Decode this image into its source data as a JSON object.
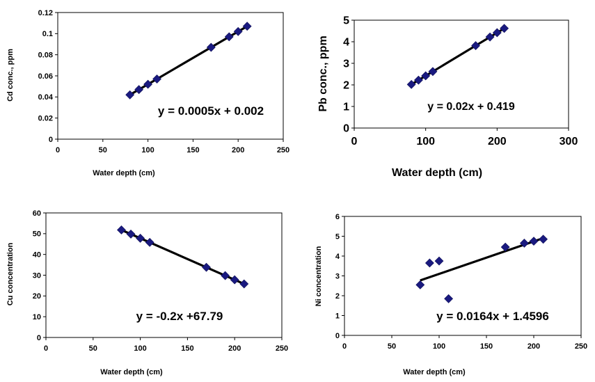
{
  "colors": {
    "marker": "#1A1A80",
    "line": "#000000",
    "frame": "#000000",
    "background": "#ffffff"
  },
  "chart_data": [
    {
      "type": "scatter",
      "title": "",
      "xlabel": "Water depth (cm)",
      "ylabel": "Cd conc., ppm",
      "xlim": [
        0,
        250
      ],
      "ylim": [
        0,
        0.12
      ],
      "x_ticks": [
        "0",
        "50",
        "100",
        "150",
        "200",
        "250"
      ],
      "y_ticks": [
        "0",
        "0.02",
        "0.04",
        "0.06",
        "0.08",
        "0.1",
        "0.12"
      ],
      "points": [
        [
          80,
          0.042
        ],
        [
          90,
          0.047
        ],
        [
          100,
          0.052
        ],
        [
          110,
          0.057
        ],
        [
          170,
          0.087
        ],
        [
          190,
          0.097
        ],
        [
          200,
          0.102
        ],
        [
          210,
          0.107
        ]
      ],
      "trendline": {
        "slope": 0.0005,
        "intercept": 0.002,
        "x_range": [
          80,
          210
        ]
      },
      "equation": "y = 0.0005x + 0.002",
      "grid": false
    },
    {
      "type": "scatter",
      "title": "",
      "xlabel": "Water depth (cm)",
      "ylabel": "Pb conc., ppm",
      "xlim": [
        0,
        300
      ],
      "ylim": [
        0,
        5
      ],
      "x_ticks": [
        "0",
        "100",
        "200",
        "300"
      ],
      "y_ticks": [
        "0",
        "1",
        "2",
        "3",
        "4",
        "5"
      ],
      "points": [
        [
          80,
          2.02
        ],
        [
          90,
          2.22
        ],
        [
          100,
          2.42
        ],
        [
          110,
          2.62
        ],
        [
          170,
          3.82
        ],
        [
          190,
          4.22
        ],
        [
          200,
          4.42
        ],
        [
          210,
          4.62
        ]
      ],
      "trendline": {
        "slope": 0.02,
        "intercept": 0.419,
        "x_range": [
          80,
          210
        ]
      },
      "equation": "y = 0.02x + 0.419",
      "grid": false
    },
    {
      "type": "scatter",
      "title": "",
      "xlabel": "Water depth (cm)",
      "ylabel": "Cu concentration",
      "xlim": [
        0,
        250
      ],
      "ylim": [
        0,
        60
      ],
      "x_ticks": [
        "0",
        "50",
        "100",
        "150",
        "200",
        "250"
      ],
      "y_ticks": [
        "0",
        "10",
        "20",
        "30",
        "40",
        "50",
        "60"
      ],
      "points": [
        [
          80,
          51.8
        ],
        [
          90,
          49.8
        ],
        [
          100,
          47.8
        ],
        [
          110,
          45.8
        ],
        [
          170,
          33.8
        ],
        [
          190,
          29.8
        ],
        [
          200,
          27.8
        ],
        [
          210,
          25.8
        ]
      ],
      "trendline": {
        "slope": -0.2,
        "intercept": 67.79,
        "x_range": [
          80,
          210
        ]
      },
      "equation": "y = -0.2x +67.79",
      "grid": false
    },
    {
      "type": "scatter",
      "title": "",
      "xlabel": "Water depth (cm)",
      "ylabel": "Ni concentration",
      "xlim": [
        0,
        250
      ],
      "ylim": [
        0,
        6
      ],
      "x_ticks": [
        "0",
        "50",
        "100",
        "150",
        "200",
        "250"
      ],
      "y_ticks": [
        "0",
        "1",
        "2",
        "3",
        "4",
        "5",
        "6"
      ],
      "points": [
        [
          80,
          2.55
        ],
        [
          90,
          3.65
        ],
        [
          100,
          3.75
        ],
        [
          110,
          1.85
        ],
        [
          170,
          4.45
        ],
        [
          190,
          4.65
        ],
        [
          200,
          4.75
        ],
        [
          210,
          4.85
        ]
      ],
      "trendline": {
        "slope": 0.0164,
        "intercept": 1.4596,
        "x_range": [
          80,
          210
        ]
      },
      "equation": "y = 0.0164x + 1.4596",
      "grid": false
    }
  ]
}
